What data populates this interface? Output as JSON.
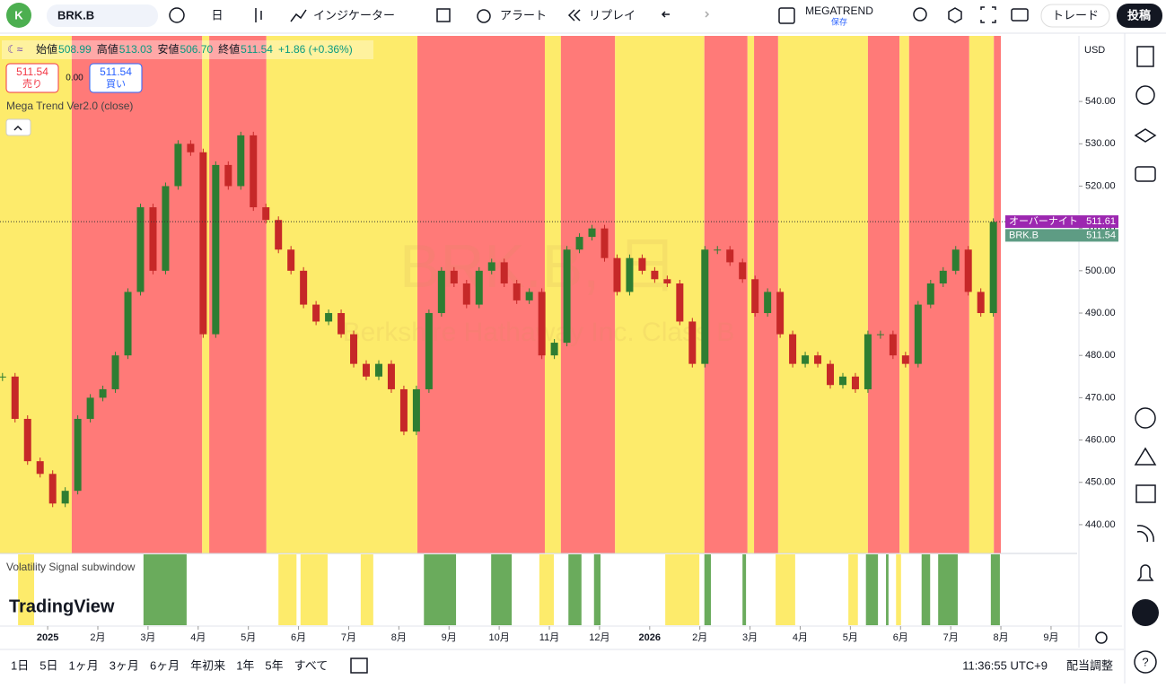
{
  "toolbar": {
    "avatar": "K",
    "symbol": "BRK.B",
    "interval": "日",
    "indicators": "インジケーター",
    "alert": "アラート",
    "replay": "リプレイ",
    "layout_name": "MEGATREND",
    "save_state": "保存",
    "trade": "トレード",
    "publish": "投稿"
  },
  "legend": {
    "ohlc": [
      {
        "label": "始値",
        "value": "508.99"
      },
      {
        "label": "高値",
        "value": "513.03"
      },
      {
        "label": "安値",
        "value": "506.70"
      },
      {
        "label": "終値",
        "value": "511.54"
      }
    ],
    "change": "+1.86 (+0.36%)",
    "sell": {
      "price": "511.54",
      "label": "売り"
    },
    "spread": "0.00",
    "buy": {
      "price": "511.54",
      "label": "買い"
    },
    "indicator": "Mega Trend Ver2.0 (close)"
  },
  "chart_data": {
    "type": "candlestick",
    "watermark": "BRK.B, 日",
    "description": "Berkshire Hathaway Inc. Class B",
    "currency": "USD",
    "x": [
      -0.9,
      -0.65,
      -0.4,
      -0.15,
      0.1,
      0.35,
      0.6,
      0.85,
      1.1,
      1.35,
      1.6,
      1.85,
      2.1,
      2.35,
      2.6,
      2.85,
      3.1,
      3.35,
      3.6,
      3.85,
      4.1,
      4.35,
      4.6,
      4.85,
      5.1,
      5.35,
      5.6,
      5.85,
      6.1,
      6.35,
      6.6,
      6.85,
      7.1,
      7.35,
      7.6,
      7.85,
      8.1,
      8.35,
      8.6,
      8.85,
      9.1,
      9.35,
      9.6,
      9.85,
      10.1,
      10.35,
      10.6,
      10.85,
      11.1,
      11.35,
      11.6,
      11.85,
      12.1,
      12.35,
      12.6,
      12.85,
      13.1,
      13.35,
      13.6,
      13.85,
      14.1,
      14.35,
      14.6,
      14.85,
      15.1,
      15.35,
      15.6,
      15.85,
      16.1,
      16.35,
      16.6,
      16.85,
      17.1,
      17.35,
      17.6,
      17.85,
      18.1,
      18.35,
      18.6,
      18.85
    ],
    "close": [
      475,
      465,
      455,
      452,
      445,
      448,
      465,
      470,
      472,
      480,
      495,
      515,
      500,
      520,
      530,
      528,
      485,
      525,
      520,
      532,
      515,
      512,
      505,
      500,
      492,
      488,
      490,
      485,
      478,
      475,
      478,
      472,
      462,
      472,
      490,
      500,
      497,
      492,
      500,
      502,
      497,
      493,
      495,
      480,
      483,
      505,
      508,
      510,
      503,
      495,
      503,
      500,
      498,
      497,
      488,
      478,
      505,
      505,
      502,
      498,
      490,
      495,
      485,
      478,
      480,
      478,
      473,
      475,
      472,
      485,
      485,
      480,
      478,
      492,
      497,
      500,
      505,
      495,
      490,
      511.54
    ],
    "up_color": "#2e7d32",
    "down_color": "#c62828",
    "xlim": [
      -0.95,
      20.52
    ],
    "xticks": [
      {
        "value": 0,
        "label": "2025"
      },
      {
        "value": 1,
        "label": "2月"
      },
      {
        "value": 2,
        "label": "3月"
      },
      {
        "value": 3,
        "label": "4月"
      },
      {
        "value": 4,
        "label": "5月"
      },
      {
        "value": 5,
        "label": "6月"
      },
      {
        "value": 6,
        "label": "7月"
      },
      {
        "value": 7,
        "label": "8月"
      },
      {
        "value": 8,
        "label": "9月"
      },
      {
        "value": 9,
        "label": "10月"
      },
      {
        "value": 10,
        "label": "11月"
      },
      {
        "value": 11,
        "label": "12月"
      },
      {
        "value": 12,
        "label": "2026"
      },
      {
        "value": 13,
        "label": "2月"
      },
      {
        "value": 14,
        "label": "3月"
      },
      {
        "value": 15,
        "label": "4月"
      },
      {
        "value": 16,
        "label": "5月"
      },
      {
        "value": 17,
        "label": "6月"
      },
      {
        "value": 18,
        "label": "7月"
      },
      {
        "value": 19,
        "label": "8月"
      },
      {
        "value": 20,
        "label": "9月"
      }
    ],
    "ylim": [
      433.2,
      555.5
    ],
    "yticks": [
      {
        "value": 440,
        "label": "440.00"
      },
      {
        "value": 450,
        "label": "450.00"
      },
      {
        "value": 460,
        "label": "460.00"
      },
      {
        "value": 470,
        "label": "470.00"
      },
      {
        "value": 480,
        "label": "480.00"
      },
      {
        "value": 490,
        "label": "490.00"
      },
      {
        "value": 500,
        "label": "500.00"
      },
      {
        "value": 510,
        "label": "510.00"
      },
      {
        "value": 520,
        "label": "520.00"
      },
      {
        "value": 530,
        "label": "530.00"
      },
      {
        "value": 540,
        "label": "540.00"
      }
    ],
    "bands": [
      {
        "start": -0.95,
        "end": 0.48,
        "color": "#fdeb6b"
      },
      {
        "start": 0.48,
        "end": 3.08,
        "color": "#ff7a78"
      },
      {
        "start": 3.08,
        "end": 3.22,
        "color": "#fdeb6b"
      },
      {
        "start": 3.22,
        "end": 4.36,
        "color": "#ff7a78"
      },
      {
        "start": 4.36,
        "end": 7.37,
        "color": "#fdeb6b"
      },
      {
        "start": 7.37,
        "end": 9.91,
        "color": "#ff7a78"
      },
      {
        "start": 9.91,
        "end": 10.23,
        "color": "#fdeb6b"
      },
      {
        "start": 10.23,
        "end": 11.31,
        "color": "#ff7a78"
      },
      {
        "start": 11.31,
        "end": 13.09,
        "color": "#fdeb6b"
      },
      {
        "start": 13.09,
        "end": 13.95,
        "color": "#ff7a78"
      },
      {
        "start": 13.95,
        "end": 14.08,
        "color": "#fdeb6b"
      },
      {
        "start": 14.08,
        "end": 14.56,
        "color": "#ff7a78"
      },
      {
        "start": 14.56,
        "end": 16.35,
        "color": "#fdeb6b"
      },
      {
        "start": 16.35,
        "end": 16.98,
        "color": "#ff7a78"
      },
      {
        "start": 16.98,
        "end": 17.17,
        "color": "#fdeb6b"
      },
      {
        "start": 17.17,
        "end": 18.37,
        "color": "#ff7a78"
      },
      {
        "start": 18.37,
        "end": 18.86,
        "color": "#fdeb6b"
      },
      {
        "start": 18.86,
        "end": 19.0,
        "color": "#ff7a78"
      }
    ],
    "price_markers": [
      {
        "name": "オーバーナイト",
        "value": 511.61,
        "color": "#9c27b0"
      },
      {
        "name": "BRK.B",
        "value": 511.54,
        "color": "#5e9c84"
      }
    ],
    "subwindow": {
      "title": "Volatility Signal subwindow",
      "bars": [
        {
          "start": -0.59,
          "end": -0.27,
          "color": "#fdeb6b"
        },
        {
          "start": 1.91,
          "end": 2.77,
          "color": "#6aab5c"
        },
        {
          "start": 4.6,
          "end": 4.96,
          "color": "#fdeb6b"
        },
        {
          "start": 5.04,
          "end": 5.58,
          "color": "#fdeb6b"
        },
        {
          "start": 6.24,
          "end": 6.49,
          "color": "#fdeb6b"
        },
        {
          "start": 7.5,
          "end": 8.14,
          "color": "#6aab5c"
        },
        {
          "start": 8.84,
          "end": 9.25,
          "color": "#6aab5c"
        },
        {
          "start": 9.8,
          "end": 10.09,
          "color": "#fdeb6b"
        },
        {
          "start": 10.38,
          "end": 10.64,
          "color": "#6aab5c"
        },
        {
          "start": 10.89,
          "end": 11.02,
          "color": "#6aab5c"
        },
        {
          "start": 12.31,
          "end": 12.99,
          "color": "#fdeb6b"
        },
        {
          "start": 13.09,
          "end": 13.22,
          "color": "#6aab5c"
        },
        {
          "start": 13.85,
          "end": 13.92,
          "color": "#6aab5c"
        },
        {
          "start": 14.51,
          "end": 14.9,
          "color": "#fdeb6b"
        },
        {
          "start": 15.96,
          "end": 16.15,
          "color": "#fdeb6b"
        },
        {
          "start": 16.31,
          "end": 16.55,
          "color": "#6aab5c"
        },
        {
          "start": 16.71,
          "end": 16.76,
          "color": "#6aab5c"
        },
        {
          "start": 16.91,
          "end": 17.01,
          "color": "#fdeb6b"
        },
        {
          "start": 17.42,
          "end": 17.59,
          "color": "#6aab5c"
        },
        {
          "start": 17.75,
          "end": 18.14,
          "color": "#6aab5c"
        },
        {
          "start": 18.8,
          "end": 18.98,
          "color": "#6aab5c"
        }
      ]
    }
  },
  "branding": "TradingView",
  "bottom_bar": {
    "ranges": [
      "1日",
      "5日",
      "1ヶ月",
      "3ヶ月",
      "6ヶ月",
      "年初来",
      "1年",
      "5年",
      "すべて"
    ],
    "time": "11:36:55 UTC+9",
    "adjust": "配当調整"
  }
}
